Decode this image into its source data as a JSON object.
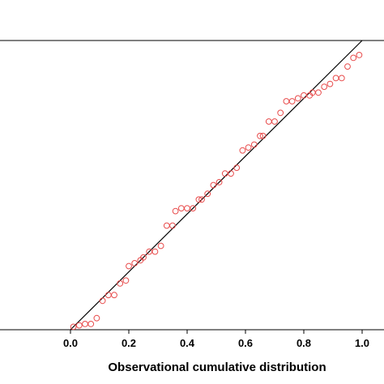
{
  "chart_data": {
    "type": "scatter",
    "title": "",
    "xlabel": "Observational cumulative distribution",
    "ylabel": "",
    "xlim": [
      0.0,
      1.0
    ],
    "ylim": [
      0.0,
      1.0
    ],
    "x_ticks": [
      "0.0",
      "0.2",
      "0.4",
      "0.6",
      "0.8",
      "1.0"
    ],
    "grid": false,
    "legend": "none",
    "marker": "open-circle",
    "marker_color": "#e84c4c",
    "reference_line": {
      "from": [
        0.0,
        0.0
      ],
      "to": [
        1.0,
        1.0
      ],
      "color": "#000000"
    },
    "series": [
      {
        "points": [
          [
            0.01,
            0.01
          ],
          [
            0.03,
            0.015
          ],
          [
            0.05,
            0.02
          ],
          [
            0.07,
            0.02
          ],
          [
            0.09,
            0.04
          ],
          [
            0.11,
            0.1
          ],
          [
            0.13,
            0.12
          ],
          [
            0.15,
            0.12
          ],
          [
            0.17,
            0.16
          ],
          [
            0.19,
            0.17
          ],
          [
            0.2,
            0.22
          ],
          [
            0.22,
            0.23
          ],
          [
            0.24,
            0.24
          ],
          [
            0.25,
            0.25
          ],
          [
            0.27,
            0.27
          ],
          [
            0.29,
            0.27
          ],
          [
            0.31,
            0.29
          ],
          [
            0.33,
            0.36
          ],
          [
            0.35,
            0.36
          ],
          [
            0.36,
            0.41
          ],
          [
            0.38,
            0.42
          ],
          [
            0.4,
            0.42
          ],
          [
            0.42,
            0.42
          ],
          [
            0.44,
            0.45
          ],
          [
            0.45,
            0.45
          ],
          [
            0.47,
            0.47
          ],
          [
            0.49,
            0.5
          ],
          [
            0.51,
            0.51
          ],
          [
            0.53,
            0.54
          ],
          [
            0.55,
            0.54
          ],
          [
            0.57,
            0.56
          ],
          [
            0.59,
            0.62
          ],
          [
            0.61,
            0.63
          ],
          [
            0.63,
            0.64
          ],
          [
            0.65,
            0.67
          ],
          [
            0.66,
            0.67
          ],
          [
            0.68,
            0.72
          ],
          [
            0.7,
            0.72
          ],
          [
            0.72,
            0.75
          ],
          [
            0.74,
            0.79
          ],
          [
            0.76,
            0.79
          ],
          [
            0.78,
            0.8
          ],
          [
            0.8,
            0.81
          ],
          [
            0.82,
            0.81
          ],
          [
            0.83,
            0.82
          ],
          [
            0.85,
            0.82
          ],
          [
            0.87,
            0.84
          ],
          [
            0.89,
            0.85
          ],
          [
            0.91,
            0.87
          ],
          [
            0.93,
            0.87
          ],
          [
            0.95,
            0.91
          ],
          [
            0.97,
            0.94
          ],
          [
            0.99,
            0.95
          ]
        ]
      }
    ]
  }
}
